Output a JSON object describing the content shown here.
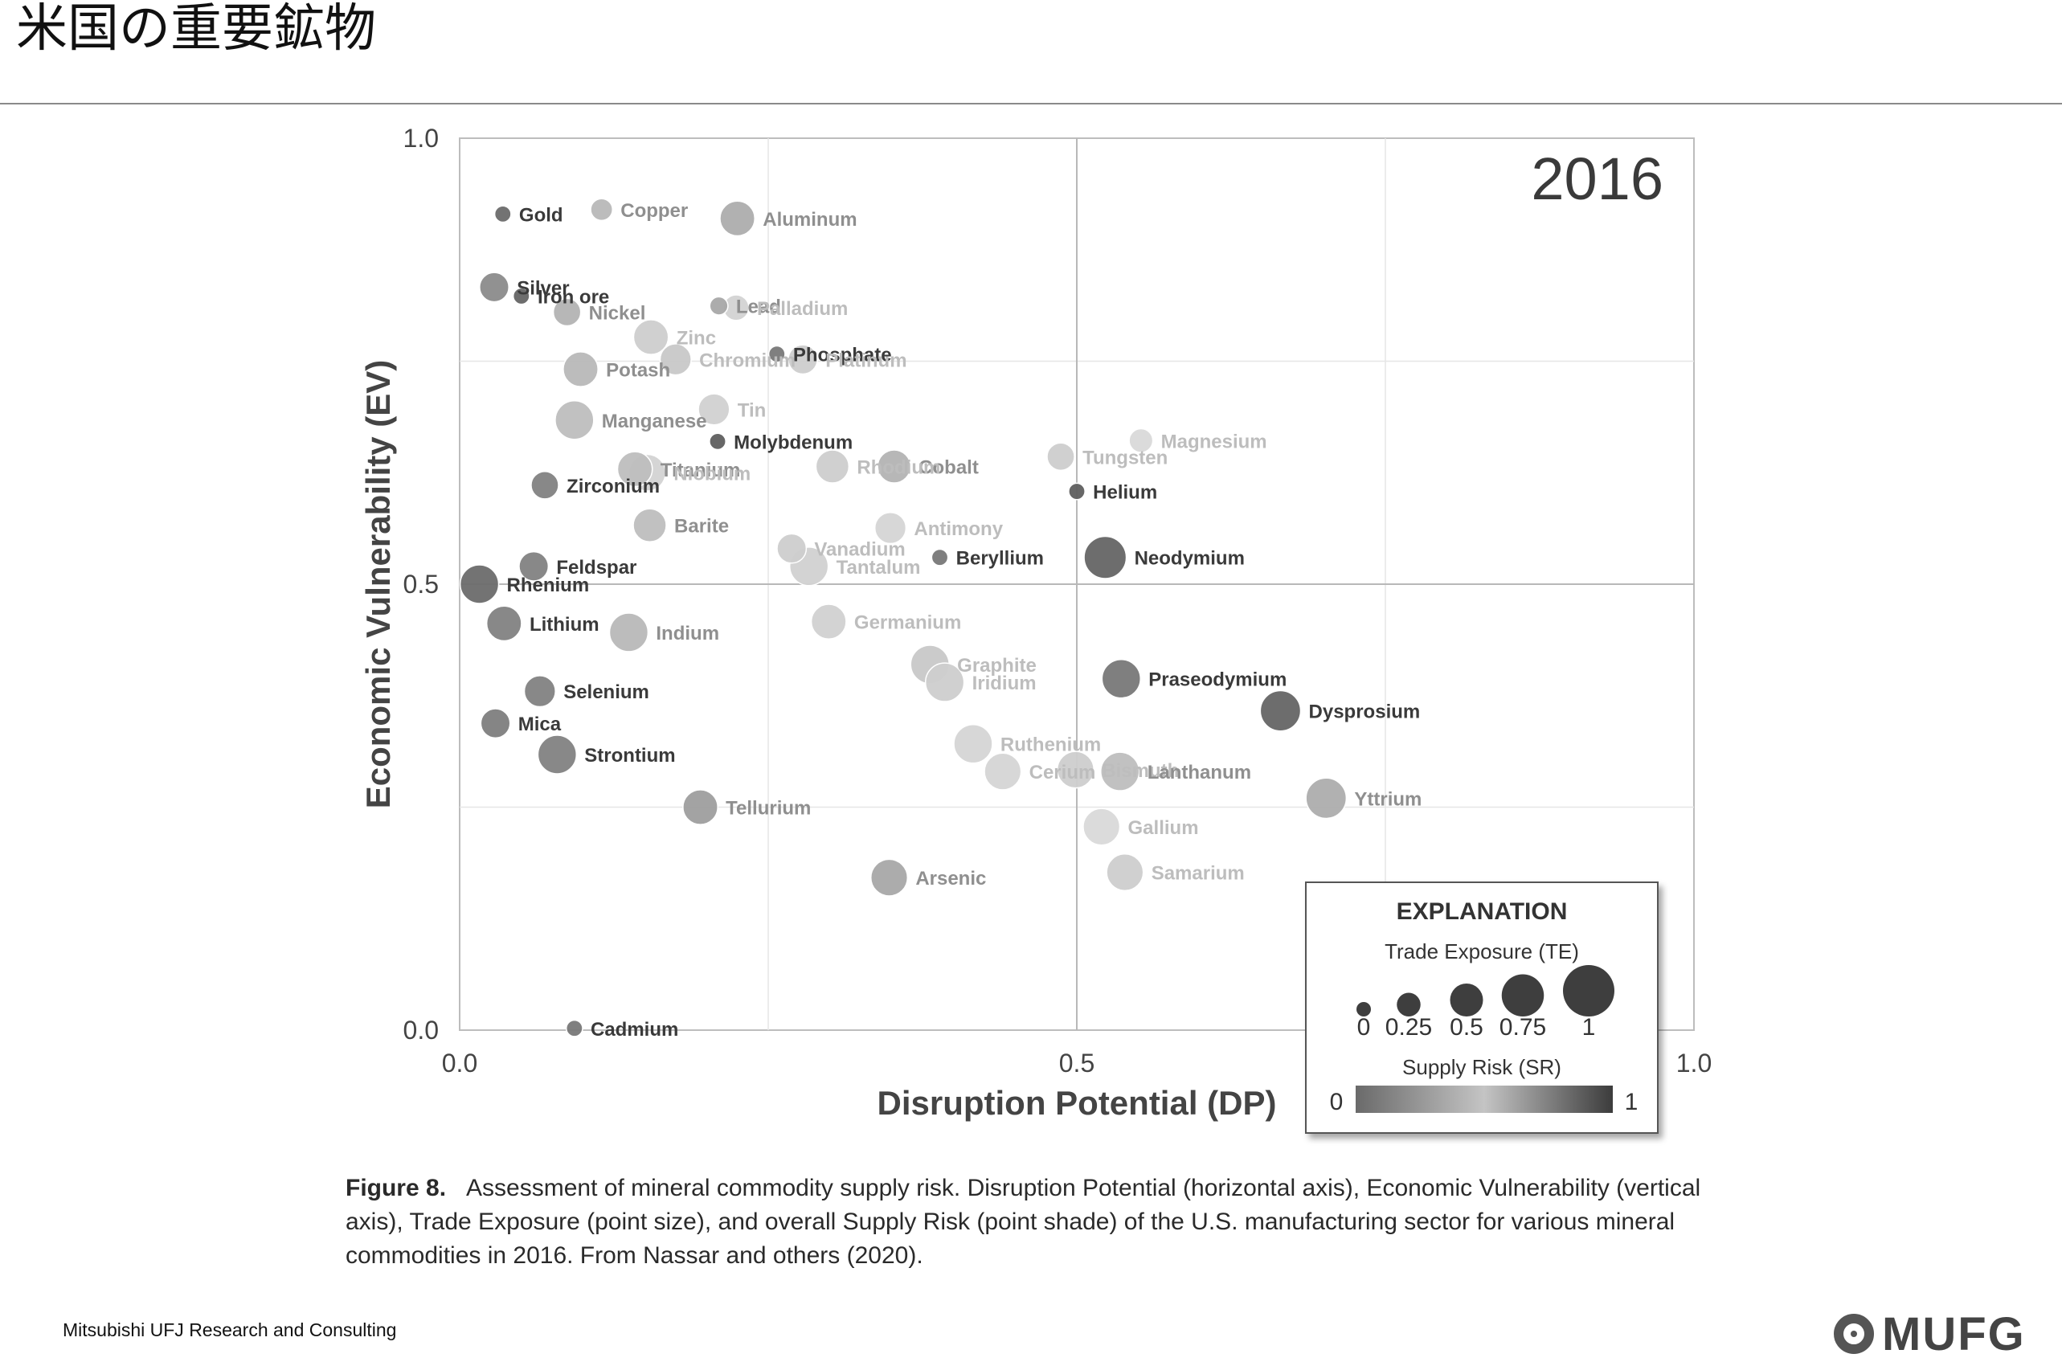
{
  "page": {
    "title": "米国の重要鉱物",
    "footer": "Mitsubishi UFJ Research and Consulting",
    "logo_text": "MUFG",
    "caption_label": "Figure 8.",
    "caption_text": "Assessment of mineral commodity supply risk. Disruption Potential (horizontal axis), Economic Vulnerability (vertical axis), Trade Exposure (point size), and overall Supply Risk (point shade) of the U.S. manufacturing sector for various mineral commodities in 2016. From Nassar and others (2020)."
  },
  "chart_data": {
    "type": "scatter",
    "year_label": "2016",
    "xlabel": "Disruption Potential (DP)",
    "ylabel": "Economic Vulnerability (EV)",
    "xlim": [
      0,
      1
    ],
    "ylim": [
      0,
      1
    ],
    "x_ticks": [
      "0.0",
      "0.5",
      "1.0"
    ],
    "y_ticks": [
      "0.0",
      "0.5",
      "1.0"
    ],
    "grid": true,
    "points": [
      {
        "name": "Gold",
        "x": 0.035,
        "y": 0.915,
        "te": 0.05,
        "sr": 0.82
      },
      {
        "name": "Copper",
        "x": 0.115,
        "y": 0.92,
        "te": 0.2,
        "sr": 0.35
      },
      {
        "name": "Aluminum",
        "x": 0.225,
        "y": 0.91,
        "te": 0.55,
        "sr": 0.45
      },
      {
        "name": "Silver",
        "x": 0.028,
        "y": 0.833,
        "te": 0.4,
        "sr": 0.65
      },
      {
        "name": "Iron ore",
        "x": 0.05,
        "y": 0.823,
        "te": 0.05,
        "sr": 0.85
      },
      {
        "name": "Nickel",
        "x": 0.087,
        "y": 0.805,
        "te": 0.35,
        "sr": 0.4
      },
      {
        "name": "Lead",
        "x": 0.21,
        "y": 0.812,
        "te": 0.1,
        "sr": 0.5
      },
      {
        "name": "Palladium",
        "x": 0.224,
        "y": 0.81,
        "te": 0.3,
        "sr": 0.1
      },
      {
        "name": "Zinc",
        "x": 0.155,
        "y": 0.777,
        "te": 0.55,
        "sr": 0.15
      },
      {
        "name": "Phosphate",
        "x": 0.257,
        "y": 0.758,
        "te": 0.05,
        "sr": 0.75
      },
      {
        "name": "Platinum",
        "x": 0.278,
        "y": 0.752,
        "te": 0.4,
        "sr": 0.15
      },
      {
        "name": "Potash",
        "x": 0.098,
        "y": 0.741,
        "te": 0.55,
        "sr": 0.35
      },
      {
        "name": "Chromium",
        "x": 0.175,
        "y": 0.752,
        "te": 0.45,
        "sr": 0.2
      },
      {
        "name": "Tin",
        "x": 0.206,
        "y": 0.696,
        "te": 0.45,
        "sr": 0.12
      },
      {
        "name": "Manganese",
        "x": 0.093,
        "y": 0.684,
        "te": 0.65,
        "sr": 0.3
      },
      {
        "name": "Molybdenum",
        "x": 0.209,
        "y": 0.66,
        "te": 0.05,
        "sr": 0.88
      },
      {
        "name": "Magnesium",
        "x": 0.552,
        "y": 0.661,
        "te": 0.25,
        "sr": 0.05
      },
      {
        "name": "Tungsten",
        "x": 0.487,
        "y": 0.643,
        "te": 0.35,
        "sr": 0.15
      },
      {
        "name": "Cobalt",
        "x": 0.352,
        "y": 0.632,
        "te": 0.5,
        "sr": 0.4
      },
      {
        "name": "Rhodium",
        "x": 0.302,
        "y": 0.632,
        "te": 0.5,
        "sr": 0.15
      },
      {
        "name": "Titanium",
        "x": 0.142,
        "y": 0.629,
        "te": 0.55,
        "sr": 0.3
      },
      {
        "name": "Niobium",
        "x": 0.152,
        "y": 0.625,
        "te": 0.6,
        "sr": 0.1
      },
      {
        "name": "Helium",
        "x": 0.5,
        "y": 0.604,
        "te": 0.05,
        "sr": 0.88
      },
      {
        "name": "Zirconium",
        "x": 0.069,
        "y": 0.611,
        "te": 0.35,
        "sr": 0.7
      },
      {
        "name": "Barite",
        "x": 0.154,
        "y": 0.566,
        "te": 0.5,
        "sr": 0.3
      },
      {
        "name": "Antimony",
        "x": 0.349,
        "y": 0.563,
        "te": 0.45,
        "sr": 0.08
      },
      {
        "name": "Vanadium",
        "x": 0.269,
        "y": 0.54,
        "te": 0.4,
        "sr": 0.15
      },
      {
        "name": "Tantalum",
        "x": 0.283,
        "y": 0.52,
        "te": 0.65,
        "sr": 0.12
      },
      {
        "name": "Beryllium",
        "x": 0.389,
        "y": 0.53,
        "te": 0.05,
        "sr": 0.75
      },
      {
        "name": "Neodymium",
        "x": 0.523,
        "y": 0.53,
        "te": 0.75,
        "sr": 0.85
      },
      {
        "name": "Feldspar",
        "x": 0.06,
        "y": 0.52,
        "te": 0.4,
        "sr": 0.7
      },
      {
        "name": "Rhenium",
        "x": 0.016,
        "y": 0.5,
        "te": 0.65,
        "sr": 0.82
      },
      {
        "name": "Lithium",
        "x": 0.036,
        "y": 0.456,
        "te": 0.55,
        "sr": 0.7
      },
      {
        "name": "Indium",
        "x": 0.137,
        "y": 0.446,
        "te": 0.65,
        "sr": 0.35
      },
      {
        "name": "Germanium",
        "x": 0.299,
        "y": 0.458,
        "te": 0.55,
        "sr": 0.12
      },
      {
        "name": "Graphite",
        "x": 0.381,
        "y": 0.41,
        "te": 0.65,
        "sr": 0.2
      },
      {
        "name": "Iridium",
        "x": 0.393,
        "y": 0.39,
        "te": 0.65,
        "sr": 0.15
      },
      {
        "name": "Praseodymium",
        "x": 0.536,
        "y": 0.394,
        "te": 0.65,
        "sr": 0.75
      },
      {
        "name": "Dysprosium",
        "x": 0.665,
        "y": 0.358,
        "te": 0.7,
        "sr": 0.85
      },
      {
        "name": "Selenium",
        "x": 0.065,
        "y": 0.38,
        "te": 0.45,
        "sr": 0.7
      },
      {
        "name": "Mica",
        "x": 0.029,
        "y": 0.344,
        "te": 0.4,
        "sr": 0.72
      },
      {
        "name": "Strontium",
        "x": 0.079,
        "y": 0.309,
        "te": 0.65,
        "sr": 0.7
      },
      {
        "name": "Ruthenium",
        "x": 0.416,
        "y": 0.321,
        "te": 0.65,
        "sr": 0.08
      },
      {
        "name": "Bismuth",
        "x": 0.499,
        "y": 0.292,
        "te": 0.6,
        "sr": 0.15
      },
      {
        "name": "Cerium",
        "x": 0.44,
        "y": 0.29,
        "te": 0.6,
        "sr": 0.08
      },
      {
        "name": "Lanthanum",
        "x": 0.535,
        "y": 0.29,
        "te": 0.65,
        "sr": 0.3
      },
      {
        "name": "Yttrium",
        "x": 0.702,
        "y": 0.26,
        "te": 0.7,
        "sr": 0.45
      },
      {
        "name": "Tellurium",
        "x": 0.195,
        "y": 0.25,
        "te": 0.55,
        "sr": 0.55
      },
      {
        "name": "Gallium",
        "x": 0.52,
        "y": 0.228,
        "te": 0.6,
        "sr": 0.05
      },
      {
        "name": "Arsenic",
        "x": 0.348,
        "y": 0.171,
        "te": 0.6,
        "sr": 0.5
      },
      {
        "name": "Samarium",
        "x": 0.539,
        "y": 0.177,
        "te": 0.6,
        "sr": 0.15
      },
      {
        "name": "Cadmium",
        "x": 0.093,
        "y": 0.002,
        "te": 0.05,
        "sr": 0.75
      }
    ],
    "legend": {
      "title": "EXPLANATION",
      "size_title": "Trade Exposure (TE)",
      "size_values": [
        0,
        0.25,
        0.5,
        0.75,
        1
      ],
      "size_labels": [
        "0",
        "0.25",
        "0.5",
        "0.75",
        "1"
      ],
      "shade_title": "Supply Risk (SR)",
      "shade_min_label": "0",
      "shade_max_label": "1",
      "placement": "bottom-right"
    }
  }
}
